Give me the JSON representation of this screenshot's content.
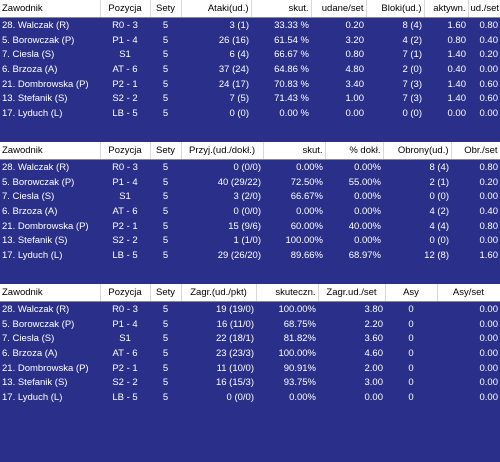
{
  "table1": {
    "headers": [
      "Zawodnik",
      "Pozycja",
      "Sety",
      "Ataki(ud.)",
      "skut.",
      "udane/set",
      "Bloki(ud.)",
      "aktywn.",
      "ud./set"
    ],
    "rows": [
      [
        "28. Walczak (R)",
        "R0 - 3",
        "5",
        "3 (1)",
        "33.33 %",
        "0.20",
        "8 (4)",
        "1.60",
        "0.80"
      ],
      [
        "5. Borowczak (P)",
        "P1 - 4",
        "5",
        "26 (16)",
        "61.54 %",
        "3.20",
        "4 (2)",
        "0.80",
        "0.40"
      ],
      [
        "7. Ciesla (S)",
        "S1",
        "5",
        "6 (4)",
        "66.67 %",
        "0.80",
        "7 (1)",
        "1.40",
        "0.20"
      ],
      [
        "6. Brzoza (A)",
        "AT - 6",
        "5",
        "37 (24)",
        "64.86 %",
        "4.80",
        "2 (0)",
        "0.40",
        "0.00"
      ],
      [
        "21. Dombrowska (P)",
        "P2 - 1",
        "5",
        "24 (17)",
        "70.83 %",
        "3.40",
        "7 (3)",
        "1.40",
        "0.60"
      ],
      [
        "13. Stefanik (S)",
        "S2 - 2",
        "5",
        "7 (5)",
        "71.43 %",
        "1.00",
        "7 (3)",
        "1.40",
        "0.60"
      ],
      [
        "17. Lyduch (L)",
        "LB - 5",
        "5",
        "0 (0)",
        "0.00 %",
        "0.00",
        "0 (0)",
        "0.00",
        "0.00"
      ]
    ]
  },
  "table2": {
    "headers": [
      "Zawodnik",
      "Pozycja",
      "Sety",
      "Przyj.(ud./dokł.)",
      "skut.",
      "% dokł.",
      "Obrony(ud.)",
      "Obr./set"
    ],
    "rows": [
      [
        "28. Walczak (R)",
        "R0 - 3",
        "5",
        "0 (0/0)",
        "0.00%",
        "0.00%",
        "8 (4)",
        "0.80"
      ],
      [
        "5. Borowczak (P)",
        "P1 - 4",
        "5",
        "40 (29/22)",
        "72.50%",
        "55.00%",
        "2 (1)",
        "0.20"
      ],
      [
        "7. Ciesla (S)",
        "S1",
        "5",
        "3 (2/0)",
        "66.67%",
        "0.00%",
        "0 (0)",
        "0.00"
      ],
      [
        "6. Brzoza (A)",
        "AT - 6",
        "5",
        "0 (0/0)",
        "0.00%",
        "0.00%",
        "4 (2)",
        "0.40"
      ],
      [
        "21. Dombrowska (P)",
        "P2 - 1",
        "5",
        "15 (9/6)",
        "60.00%",
        "40.00%",
        "4 (4)",
        "0.80"
      ],
      [
        "13. Stefanik (S)",
        "S2 - 2",
        "5",
        "1 (1/0)",
        "100.00%",
        "0.00%",
        "0 (0)",
        "0.00"
      ],
      [
        "17. Lyduch (L)",
        "LB - 5",
        "5",
        "29 (26/20)",
        "89.66%",
        "68.97%",
        "12 (8)",
        "1.60"
      ]
    ]
  },
  "table3": {
    "headers": [
      "Zawodnik",
      "Pozycja",
      "Sety",
      "Zagr.(ud./pkt)",
      "skuteczn.",
      "Zagr.ud./set",
      "Asy",
      "Asy/set"
    ],
    "rows": [
      [
        "28. Walczak (R)",
        "R0 - 3",
        "5",
        "19 (19/0)",
        "100.00%",
        "3.80",
        "0",
        "0.00"
      ],
      [
        "5. Borowczak (P)",
        "P1 - 4",
        "5",
        "16 (11/0)",
        "68.75%",
        "2.20",
        "0",
        "0.00"
      ],
      [
        "7. Ciesla (S)",
        "S1",
        "5",
        "22 (18/1)",
        "81.82%",
        "3.60",
        "0",
        "0.00"
      ],
      [
        "6. Brzoza (A)",
        "AT - 6",
        "5",
        "23 (23/3)",
        "100.00%",
        "4.60",
        "0",
        "0.00"
      ],
      [
        "21. Dombrowska (P)",
        "P2 - 1",
        "5",
        "11 (10/0)",
        "90.91%",
        "2.00",
        "0",
        "0.00"
      ],
      [
        "13. Stefanik (S)",
        "S2 - 2",
        "5",
        "16 (15/3)",
        "93.75%",
        "3.00",
        "0",
        "0.00"
      ],
      [
        "17. Lyduch (L)",
        "LB - 5",
        "5",
        "0 (0/0)",
        "0.00%",
        "0.00",
        "0",
        "0.00"
      ]
    ]
  }
}
